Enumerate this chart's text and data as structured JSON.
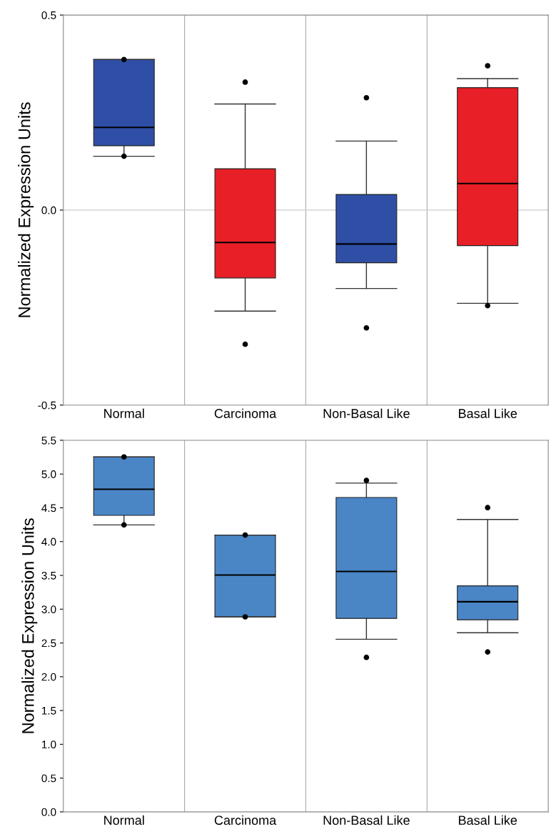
{
  "chart_data": [
    {
      "type": "box",
      "ylabel": "Normalized Expression Units",
      "categories": [
        "Normal",
        "Carcinoma",
        "Non-Basal Like",
        "Basal Like"
      ],
      "colors": [
        "#2f4fa6",
        "#e81f26",
        "#2f4fa6",
        "#e81f26"
      ],
      "boxes": [
        {
          "low": 0.138,
          "q1": 0.165,
          "median": 0.212,
          "q3": 0.386,
          "high": 0.386,
          "outliers": [
            0.386,
            0.138
          ]
        },
        {
          "low": -0.259,
          "q1": -0.174,
          "median": -0.083,
          "q3": 0.106,
          "high": 0.272,
          "outliers": [
            0.328,
            -0.344
          ]
        },
        {
          "low": -0.201,
          "q1": -0.135,
          "median": -0.087,
          "q3": 0.04,
          "high": 0.177,
          "outliers": [
            0.288,
            -0.302
          ]
        },
        {
          "low": -0.239,
          "q1": -0.091,
          "median": 0.068,
          "q3": 0.314,
          "high": 0.337,
          "outliers": [
            0.37,
            -0.245
          ]
        }
      ],
      "ylim": [
        -0.5,
        0.5
      ],
      "yticks": [
        {
          "value": -0.5,
          "label": "-0.5"
        },
        {
          "value": 0,
          "label": "0.0"
        },
        {
          "value": 0.5,
          "label": "0.5"
        }
      ],
      "ref_lines": [
        {
          "axis": "y",
          "value": 0,
          "color": "#cccccc"
        }
      ]
    },
    {
      "type": "box",
      "ylabel": "Normalized Expression Units",
      "categories": [
        "Normal",
        "Carcinoma",
        "Non-Basal Like",
        "Basal Like"
      ],
      "colors": [
        "#4a86c6",
        "#4a86c6",
        "#4a86c6",
        "#4a86c6"
      ],
      "boxes": [
        {
          "low": 4.247,
          "q1": 4.389,
          "median": 4.774,
          "q3": 5.254,
          "high": 5.254,
          "outliers": [
            5.254,
            4.247
          ]
        },
        {
          "low": 2.886,
          "q1": 2.886,
          "median": 3.505,
          "q3": 4.097,
          "high": 4.097,
          "outliers": [
            4.097,
            2.886
          ]
        },
        {
          "low": 2.555,
          "q1": 2.864,
          "median": 3.559,
          "q3": 4.653,
          "high": 4.866,
          "outliers": [
            4.905,
            2.287
          ]
        },
        {
          "low": 2.651,
          "q1": 2.843,
          "median": 3.11,
          "q3": 3.345,
          "high": 4.328,
          "outliers": [
            4.503,
            2.367
          ]
        }
      ],
      "ylim": [
        0,
        5.5
      ],
      "yticks": [
        {
          "value": 0,
          "label": "0.0"
        },
        {
          "value": 0.5,
          "label": "0.5"
        },
        {
          "value": 1,
          "label": "1.0"
        },
        {
          "value": 1.5,
          "label": "1.5"
        },
        {
          "value": 2,
          "label": "2.0"
        },
        {
          "value": 2.5,
          "label": "2.5"
        },
        {
          "value": 3,
          "label": "3.0"
        },
        {
          "value": 3.5,
          "label": "3.5"
        },
        {
          "value": 4,
          "label": "4.0"
        },
        {
          "value": 4.5,
          "label": "4.5"
        },
        {
          "value": 5,
          "label": "5.0"
        },
        {
          "value": 5.5,
          "label": "5.5"
        }
      ]
    }
  ]
}
